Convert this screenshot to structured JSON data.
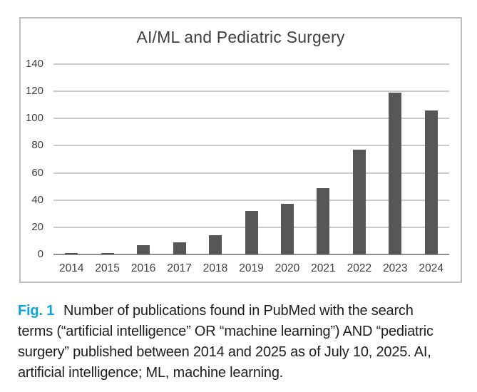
{
  "caption": {
    "fig_label": "Fig. 1",
    "lines": [
      "Number of publications found in PubMed with the search",
      "terms (“artificial intelligence” OR “machine learning”) AND “pediatric",
      "surgery” published between 2014 and 2025 as of July 10, 2025. AI,",
      "artificial intelligence; ML, machine learning."
    ]
  },
  "colors": {
    "bar": "#575757",
    "gridline": "#cacaca",
    "axis_line": "#8f8f8f",
    "frame_border": "#bfbfbf",
    "title_text": "#3f3f3f",
    "fig_label": "#0aa3e0",
    "caption_text": "#1d1d1d"
  },
  "chart_data": {
    "type": "bar",
    "title": "AI/ML and Pediatric Surgery",
    "categories": [
      "2014",
      "2015",
      "2016",
      "2017",
      "2018",
      "2019",
      "2020",
      "2021",
      "2022",
      "2023",
      "2024"
    ],
    "values": [
      1,
      1,
      7,
      9,
      14,
      32,
      37,
      49,
      77,
      119,
      106
    ],
    "xlabel": "",
    "ylabel": "",
    "ylim": [
      0,
      140
    ],
    "yticks": [
      0,
      20,
      40,
      60,
      80,
      100,
      120,
      140
    ],
    "grid": "horizontal",
    "legend": "none",
    "bar_color": "#575757"
  }
}
